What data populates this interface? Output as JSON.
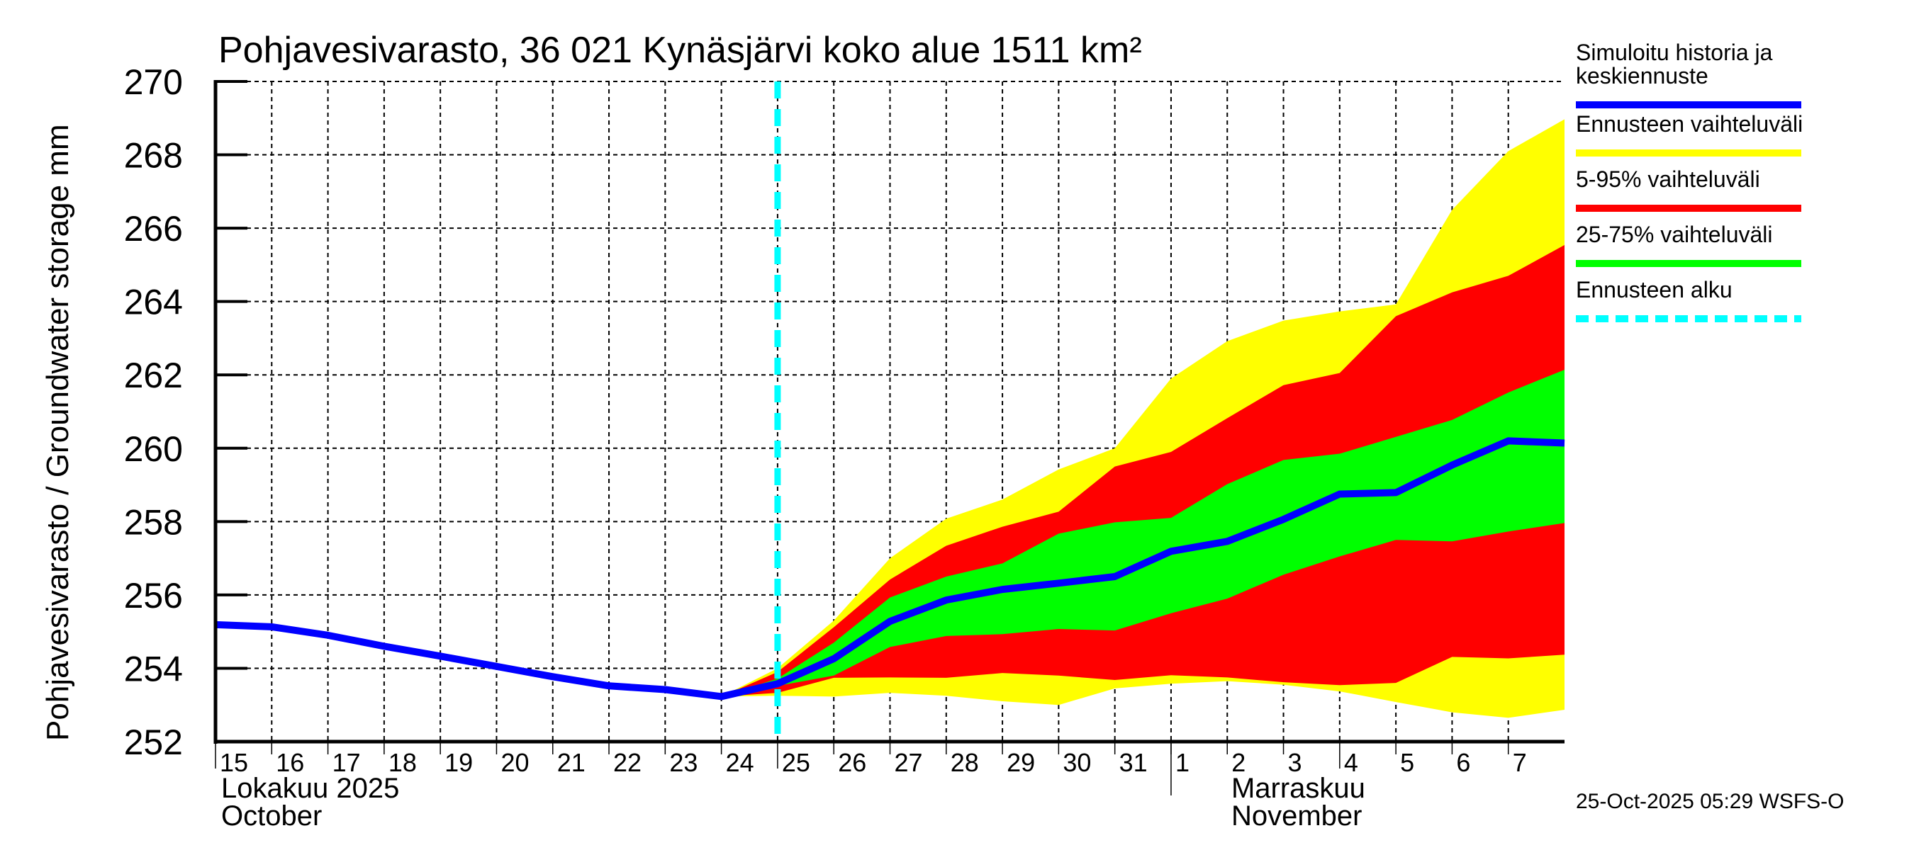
{
  "chart_data": {
    "type": "area",
    "title": "Pohjavesivarasto, 36 021 Kynäsjärvi koko alue 1511 km²",
    "ylabel": "Pohjavesivarasto / Groundwater storage   mm",
    "xlabel": "",
    "ylim": [
      252,
      270
    ],
    "yticks": [
      252,
      254,
      256,
      258,
      260,
      262,
      264,
      266,
      268,
      270
    ],
    "ytick_labels": [
      "252",
      "254",
      "256",
      "258",
      "260",
      "262",
      "264",
      "266",
      "268",
      "270"
    ],
    "grid": true,
    "x_range": [
      "2025-10-15",
      "2025-11-08"
    ],
    "x_day_offsets_range": [
      0,
      24
    ],
    "xtick_labels": [
      "15",
      "16",
      "17",
      "18",
      "19",
      "20",
      "21",
      "22",
      "23",
      "24",
      "25",
      "26",
      "27",
      "28",
      "29",
      "30",
      "31",
      "1",
      "2",
      "3",
      "4",
      "5",
      "6",
      "7"
    ],
    "month_labels": [
      {
        "line1": "Lokakuu   2025",
        "line2": "October",
        "start_day_offset": 0
      },
      {
        "line1": "Marraskuu",
        "line2": "November",
        "start_day_offset": 17
      }
    ],
    "forecast_start_day_offset": 10,
    "x_dates": [
      "10-15",
      "10-16",
      "10-17",
      "10-18",
      "10-19",
      "10-20",
      "10-21",
      "10-22",
      "10-23",
      "10-24",
      "10-25",
      "10-26",
      "10-27",
      "10-28",
      "10-29",
      "10-30",
      "10-31",
      "11-01",
      "11-02",
      "11-03",
      "11-04",
      "11-05",
      "11-06",
      "11-07",
      "11-08"
    ],
    "series": [
      {
        "name": "Simuloitu historia ja keskiennuste",
        "kind": "line",
        "color": "#0000ff",
        "x_offsets": [
          0,
          1,
          2,
          3,
          4,
          5,
          6,
          7,
          8,
          9,
          10,
          11,
          12,
          13,
          14,
          15,
          16,
          17,
          18,
          19,
          20,
          21,
          22,
          23,
          24
        ],
        "values": [
          255.19,
          255.13,
          254.9,
          254.6,
          254.33,
          254.05,
          253.77,
          253.52,
          253.42,
          253.23,
          253.58,
          254.26,
          255.28,
          255.86,
          256.15,
          256.32,
          256.5,
          257.19,
          257.46,
          258.06,
          258.75,
          258.79,
          259.54,
          260.2,
          260.14
        ]
      },
      {
        "name": "Ennusteen vaihteluväli",
        "kind": "band",
        "color": "#ffff00",
        "x_offsets": [
          9,
          10,
          11,
          12,
          13,
          14,
          15,
          16,
          17,
          18,
          19,
          20,
          21,
          22,
          23,
          24
        ],
        "upper": [
          253.23,
          254.0,
          255.3,
          257.0,
          258.08,
          258.6,
          259.42,
          260.0,
          261.9,
          262.92,
          263.48,
          263.73,
          263.92,
          266.5,
          268.1,
          268.97
        ],
        "lower": [
          253.23,
          253.25,
          253.23,
          253.33,
          253.25,
          253.1,
          253.0,
          253.45,
          253.58,
          253.65,
          253.55,
          253.37,
          253.08,
          252.8,
          252.65,
          252.87
        ]
      },
      {
        "name": "5-95% vaihteluväli",
        "kind": "band",
        "color": "#ff0000",
        "x_offsets": [
          9,
          10,
          11,
          12,
          13,
          14,
          15,
          16,
          17,
          18,
          19,
          20,
          21,
          22,
          23,
          24
        ],
        "upper": [
          253.23,
          253.9,
          255.12,
          256.42,
          257.34,
          257.86,
          258.27,
          259.5,
          259.9,
          260.82,
          261.72,
          262.05,
          263.6,
          264.25,
          264.7,
          265.54
        ],
        "lower": [
          253.23,
          253.33,
          253.74,
          253.75,
          253.74,
          253.87,
          253.8,
          253.68,
          253.81,
          253.75,
          253.62,
          253.54,
          253.6,
          254.31,
          254.27,
          254.37
        ]
      },
      {
        "name": "25-75% vaihteluväli",
        "kind": "band",
        "color": "#00ff00",
        "x_offsets": [
          9,
          10,
          11,
          12,
          13,
          14,
          15,
          16,
          17,
          18,
          19,
          20,
          21,
          22,
          23,
          24
        ],
        "upper": [
          253.23,
          253.72,
          254.7,
          255.93,
          256.5,
          256.86,
          257.67,
          257.98,
          258.1,
          259.02,
          259.68,
          259.85,
          260.31,
          260.77,
          261.52,
          262.14
        ],
        "lower": [
          253.23,
          253.52,
          253.8,
          254.58,
          254.88,
          254.93,
          255.07,
          255.03,
          255.5,
          255.9,
          256.55,
          257.05,
          257.5,
          257.46,
          257.73,
          257.96
        ]
      }
    ],
    "legend": {
      "placement": "right",
      "entries": [
        {
          "label_line1": "Simuloitu historia ja",
          "label_line2": "keskiennuste",
          "color": "#0000ff",
          "style": "solid"
        },
        {
          "label_line1": "Ennusteen vaihteluväli",
          "label_line2": "",
          "color": "#ffff00",
          "style": "solid"
        },
        {
          "label_line1": "5-95% vaihteluväli",
          "label_line2": "",
          "color": "#ff0000",
          "style": "solid"
        },
        {
          "label_line1": "25-75% vaihteluväli",
          "label_line2": "",
          "color": "#00ff00",
          "style": "solid"
        },
        {
          "label_line1": "Ennusteen alku",
          "label_line2": "",
          "color": "#00ffff",
          "style": "dashed"
        }
      ]
    },
    "forecast_line_color": "#00ffff",
    "footer": "25-Oct-2025 05:29 WSFS-O"
  }
}
